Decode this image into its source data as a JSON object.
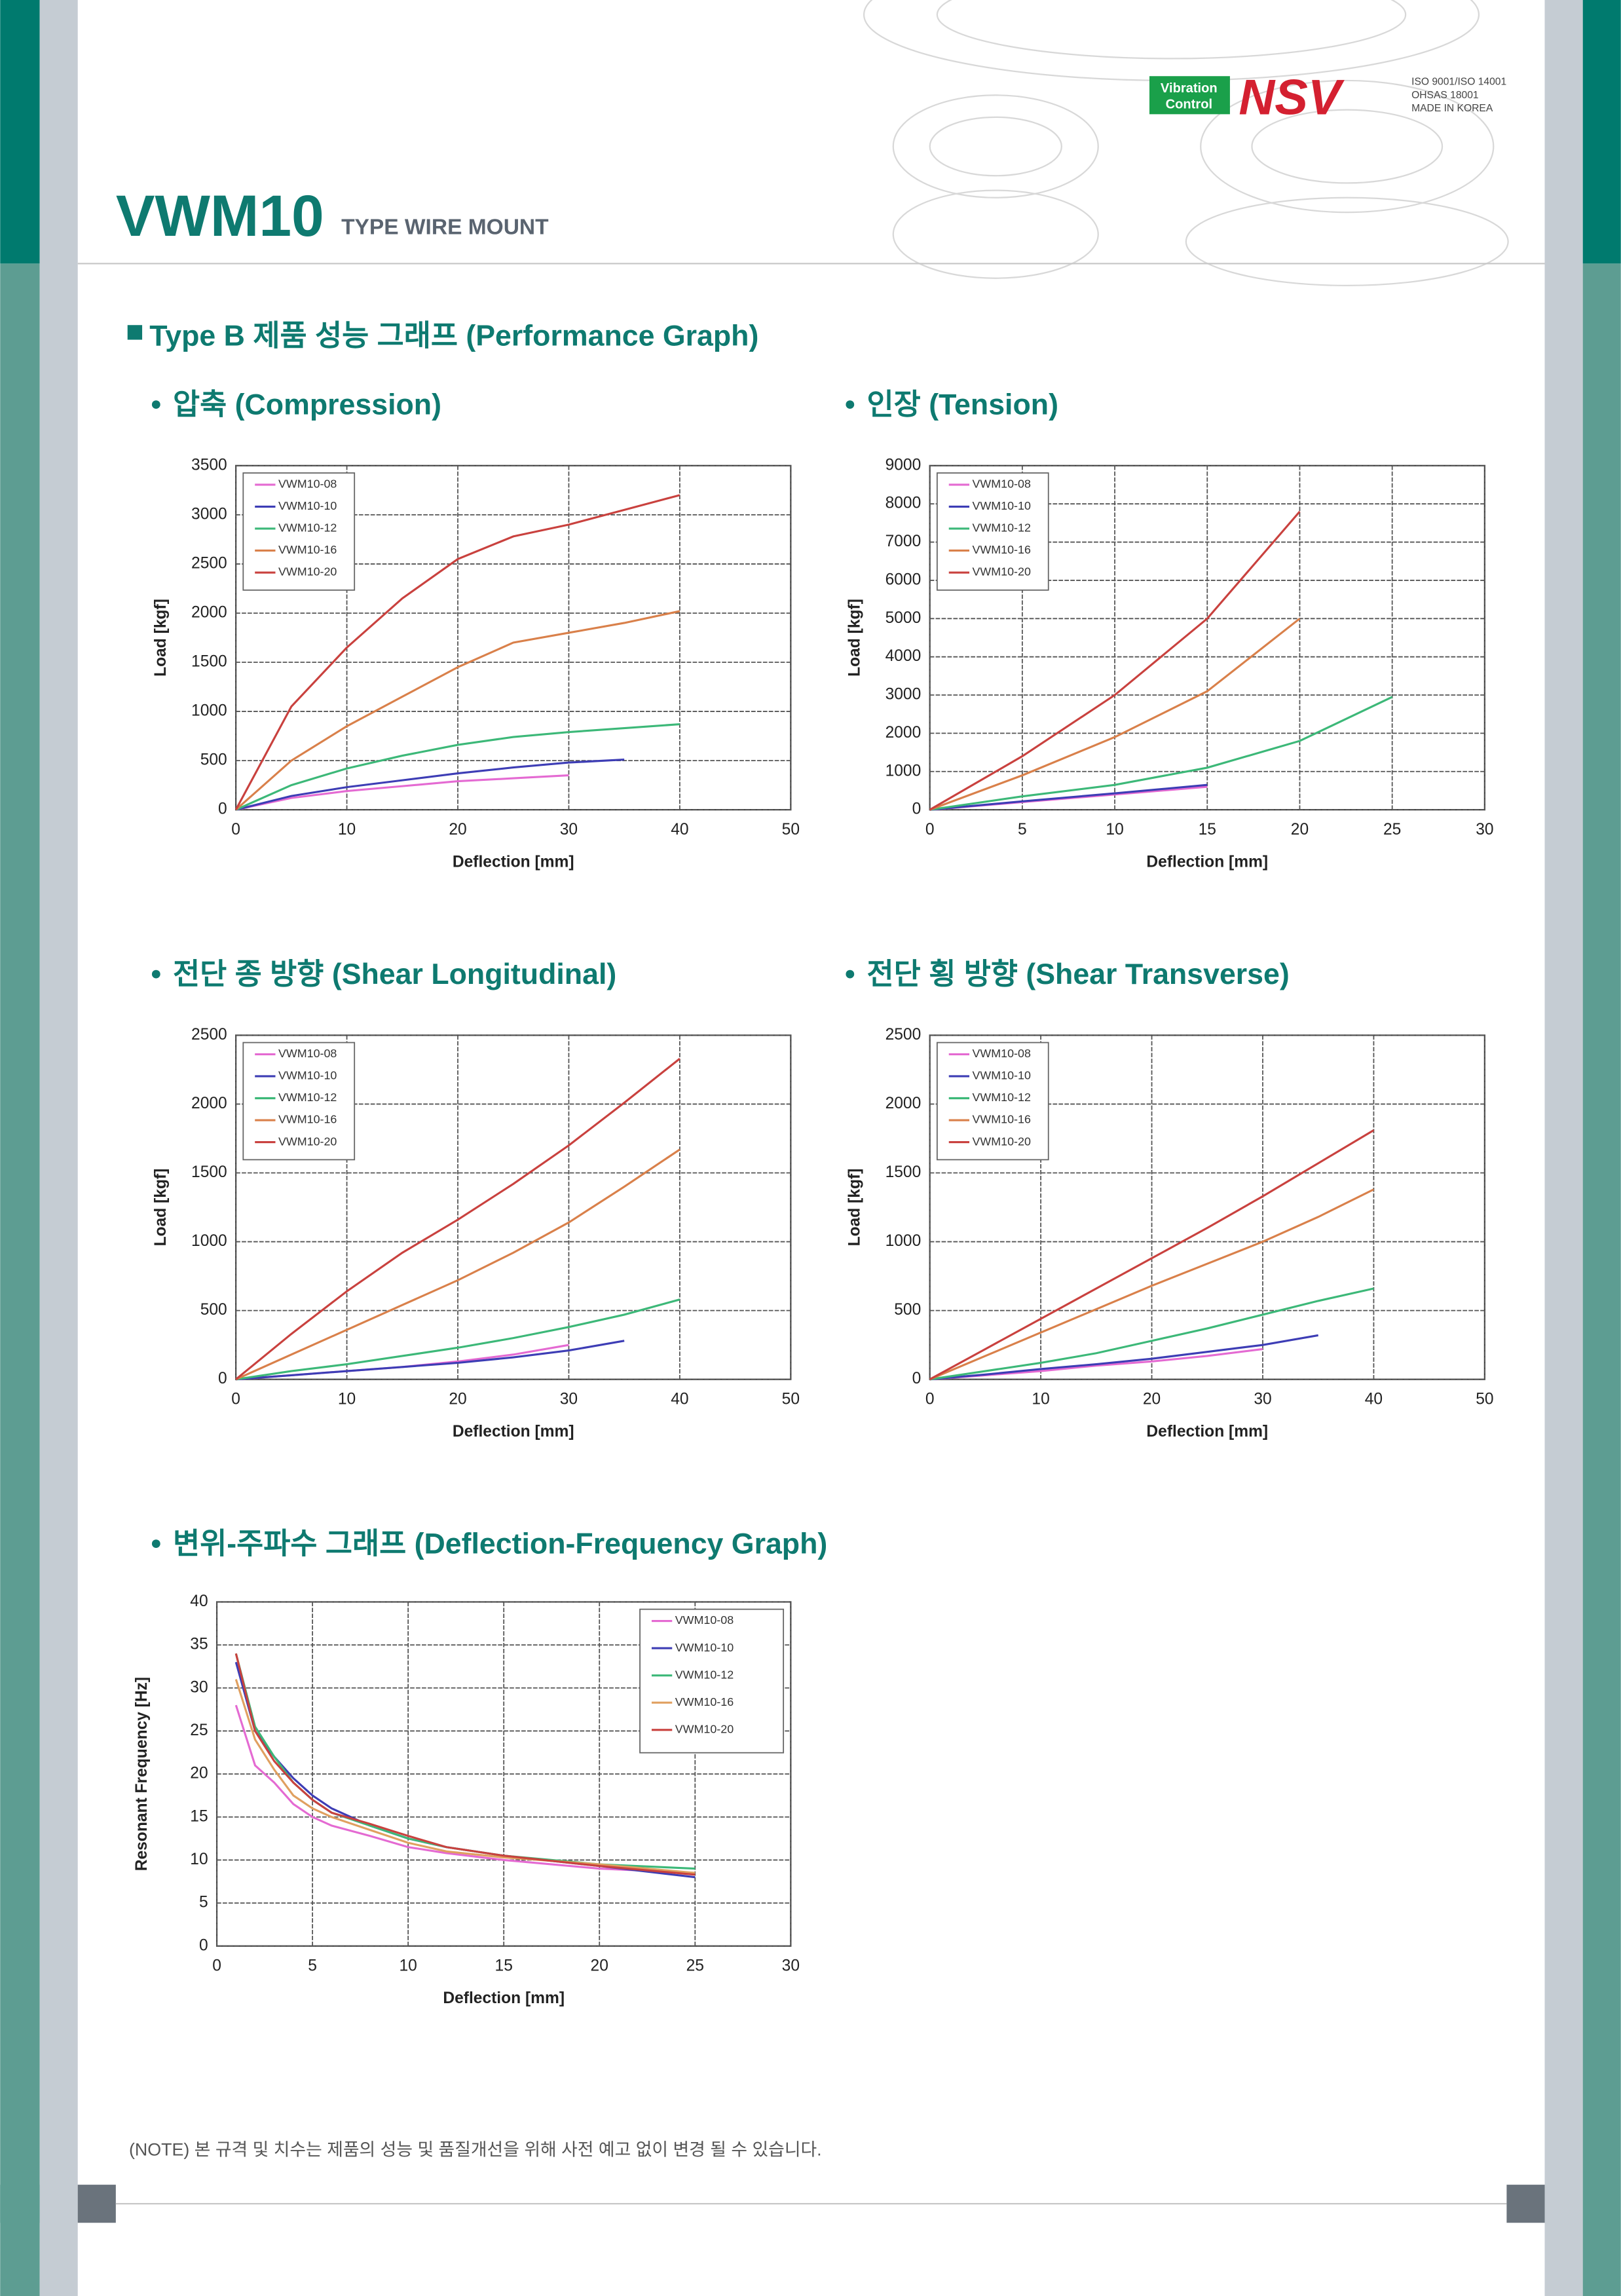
{
  "header": {
    "model": "VWM10",
    "subtitle": "TYPE WIRE MOUNT",
    "badge_line1": "Vibration",
    "badge_line2": "Control",
    "logo": "NSV",
    "cert_line1": "ISO 9001/ISO 14001",
    "cert_line2": "OHSAS 18001",
    "cert_line3": "MADE IN KOREA"
  },
  "section_title": "Type B 제품 성능 그래프 (Performance Graph)",
  "note": "(NOTE) 본 규격 및 치수는 제품의 성능 및 품질개선을 위해 사전 예고 없이 변경 될 수 있습니다.",
  "chart_data": [
    {
      "type": "line",
      "title": "압축 (Compression)",
      "xlabel": "Deflection [mm]",
      "ylabel": "Load [kgf]",
      "x": [
        0,
        5,
        10,
        15,
        20,
        25,
        30,
        35,
        40
      ],
      "xlim": [
        0,
        50
      ],
      "xticks": [
        0,
        10,
        20,
        30,
        40,
        50
      ],
      "ylim": [
        0,
        3500
      ],
      "yticks": [
        0,
        500,
        1000,
        1500,
        2000,
        2500,
        3000,
        3500
      ],
      "grid": true,
      "legend": "upper left",
      "series": [
        {
          "name": "VWM10-08",
          "color": "#e46ad2",
          "values": [
            0,
            120,
            190,
            240,
            290,
            320,
            350,
            null,
            null
          ]
        },
        {
          "name": "VWM10-10",
          "color": "#3d3db5",
          "values": [
            0,
            140,
            230,
            300,
            370,
            430,
            480,
            510,
            null
          ]
        },
        {
          "name": "VWM10-12",
          "color": "#3cb878",
          "values": [
            0,
            250,
            420,
            550,
            660,
            740,
            790,
            830,
            870
          ]
        },
        {
          "name": "VWM10-16",
          "color": "#d9804a",
          "values": [
            0,
            500,
            850,
            1150,
            1450,
            1700,
            1800,
            1900,
            2020
          ]
        },
        {
          "name": "VWM10-20",
          "color": "#c9413e",
          "values": [
            0,
            1050,
            1650,
            2150,
            2550,
            2780,
            2900,
            3050,
            3200
          ]
        }
      ]
    },
    {
      "type": "line",
      "title": "인장 (Tension)",
      "xlabel": "Deflection [mm]",
      "ylabel": "Load [kgf]",
      "x": [
        0,
        5,
        10,
        15,
        20,
        25
      ],
      "xlim": [
        0,
        30
      ],
      "xticks": [
        0,
        5,
        10,
        15,
        20,
        25,
        30
      ],
      "ylim": [
        0,
        9000
      ],
      "yticks": [
        0,
        1000,
        2000,
        3000,
        4000,
        5000,
        6000,
        7000,
        8000,
        9000
      ],
      "grid": true,
      "legend": "upper left",
      "series": [
        {
          "name": "VWM10-08",
          "color": "#e46ad2",
          "values": [
            0,
            200,
            400,
            600,
            null,
            null
          ]
        },
        {
          "name": "VWM10-10",
          "color": "#3d3db5",
          "values": [
            0,
            220,
            430,
            650,
            null,
            null
          ]
        },
        {
          "name": "VWM10-12",
          "color": "#3cb878",
          "values": [
            0,
            350,
            650,
            1100,
            1800,
            2950
          ]
        },
        {
          "name": "VWM10-16",
          "color": "#d9804a",
          "values": [
            0,
            900,
            1900,
            3100,
            5000,
            null
          ]
        },
        {
          "name": "VWM10-20",
          "color": "#c9413e",
          "values": [
            0,
            1400,
            3000,
            5000,
            7800,
            null
          ]
        }
      ]
    },
    {
      "type": "line",
      "title": "전단 종 방향 (Shear Longitudinal)",
      "xlabel": "Deflection [mm]",
      "ylabel": "Load [kgf]",
      "x": [
        0,
        5,
        10,
        15,
        20,
        25,
        30,
        35,
        40
      ],
      "xlim": [
        0,
        50
      ],
      "xticks": [
        0,
        10,
        20,
        30,
        40,
        50
      ],
      "ylim": [
        0,
        2500
      ],
      "yticks": [
        0,
        500,
        1000,
        1500,
        2000,
        2500
      ],
      "grid": true,
      "legend": "upper left",
      "series": [
        {
          "name": "VWM10-08",
          "color": "#e46ad2",
          "values": [
            0,
            30,
            60,
            90,
            130,
            180,
            250,
            null,
            null
          ]
        },
        {
          "name": "VWM10-10",
          "color": "#3d3db5",
          "values": [
            0,
            30,
            60,
            90,
            120,
            160,
            210,
            280,
            null
          ]
        },
        {
          "name": "VWM10-12",
          "color": "#3cb878",
          "values": [
            0,
            60,
            110,
            170,
            230,
            300,
            380,
            470,
            580
          ]
        },
        {
          "name": "VWM10-16",
          "color": "#d9804a",
          "values": [
            0,
            180,
            360,
            540,
            720,
            920,
            1140,
            1400,
            1670
          ]
        },
        {
          "name": "VWM10-20",
          "color": "#c9413e",
          "values": [
            0,
            330,
            640,
            920,
            1160,
            1420,
            1700,
            2010,
            2330
          ]
        }
      ]
    },
    {
      "type": "line",
      "title": "전단 횡 방향 (Shear Transverse)",
      "xlabel": "Deflection [mm]",
      "ylabel": "Load [kgf]",
      "x": [
        0,
        5,
        10,
        15,
        20,
        25,
        30,
        35,
        40
      ],
      "xlim": [
        0,
        50
      ],
      "xticks": [
        0,
        10,
        20,
        30,
        40,
        50
      ],
      "ylim": [
        0,
        2500
      ],
      "yticks": [
        0,
        500,
        1000,
        1500,
        2000,
        2500
      ],
      "grid": true,
      "legend": "upper left",
      "series": [
        {
          "name": "VWM10-08",
          "color": "#e46ad2",
          "values": [
            0,
            30,
            60,
            100,
            130,
            170,
            220,
            null,
            null
          ]
        },
        {
          "name": "VWM10-10",
          "color": "#3d3db5",
          "values": [
            0,
            35,
            75,
            110,
            150,
            200,
            250,
            320,
            null
          ]
        },
        {
          "name": "VWM10-12",
          "color": "#3cb878",
          "values": [
            0,
            60,
            120,
            190,
            280,
            370,
            470,
            570,
            660
          ]
        },
        {
          "name": "VWM10-16",
          "color": "#d9804a",
          "values": [
            0,
            170,
            340,
            510,
            680,
            840,
            1000,
            1180,
            1380
          ]
        },
        {
          "name": "VWM10-20",
          "color": "#c9413e",
          "values": [
            0,
            220,
            440,
            660,
            880,
            1100,
            1330,
            1570,
            1810
          ]
        }
      ]
    },
    {
      "type": "line",
      "title": "변위-주파수 그래프 (Deflection-Frequency Graph)",
      "xlabel": "Deflection [mm]",
      "ylabel": "Resonant Frequency [Hz]",
      "x": [
        1,
        2,
        3,
        4,
        5,
        6,
        8,
        10,
        12,
        15,
        20,
        25
      ],
      "xlim": [
        0,
        30
      ],
      "xticks": [
        0,
        5,
        10,
        15,
        20,
        25,
        30
      ],
      "ylim": [
        0,
        40
      ],
      "yticks": [
        0,
        5,
        10,
        15,
        20,
        25,
        30,
        35,
        40
      ],
      "grid": true,
      "legend": "upper right",
      "series": [
        {
          "name": "VWM10-08",
          "color": "#e46ad2",
          "values": [
            28,
            21,
            19,
            16.5,
            15,
            14,
            12.8,
            11.5,
            10.8,
            10,
            9,
            8.5
          ]
        },
        {
          "name": "VWM10-10",
          "color": "#3d3db5",
          "values": [
            33,
            25,
            22,
            19.5,
            17.5,
            16,
            14,
            12.5,
            11.5,
            10.5,
            9.3,
            8
          ]
        },
        {
          "name": "VWM10-12",
          "color": "#3cb878",
          "values": [
            34,
            25.5,
            22,
            19,
            17,
            15.5,
            14,
            12.5,
            11.5,
            10.5,
            9.5,
            9
          ]
        },
        {
          "name": "VWM10-16",
          "color": "#e0a060",
          "values": [
            31,
            24,
            20.5,
            17.5,
            16,
            15,
            13.5,
            12,
            11,
            10.3,
            9.5,
            8.5
          ]
        },
        {
          "name": "VWM10-20",
          "color": "#c9413e",
          "values": [
            34,
            25,
            21.5,
            19,
            17,
            15.5,
            14.2,
            12.8,
            11.5,
            10.5,
            9.3,
            8.3
          ]
        }
      ]
    }
  ]
}
